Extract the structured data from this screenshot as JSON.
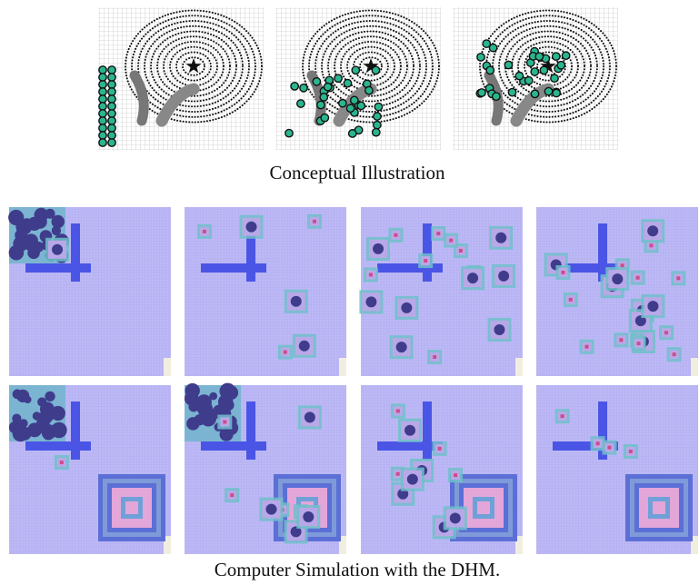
{
  "figure": {
    "top_caption": "Conceptual Illustration",
    "bottom_caption": "Computer Simulation with the DHM."
  }
}
